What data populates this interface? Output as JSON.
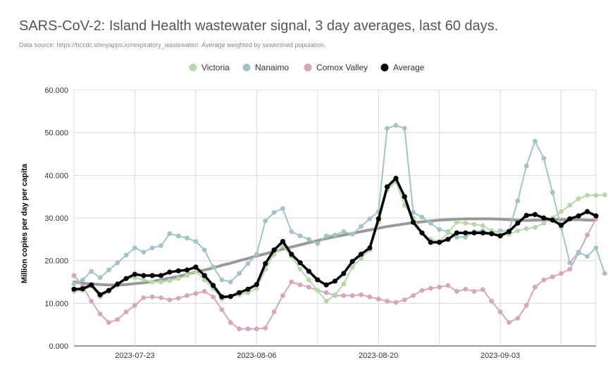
{
  "chart_data": {
    "type": "line",
    "title": "SARS-CoV-2: Island Health wastewater signal, 3 day averages, last 60 days.",
    "subtitle": "Data source: https://bccdc.shinyapps.io/respiratory_wastewater/. Average weighted by sewershed population.",
    "ylabel": "Million copies per day per capita",
    "xlabel": "",
    "ylim": [
      0,
      60
    ],
    "yticks": [
      "0.000",
      "10.000",
      "20.000",
      "30.000",
      "40.000",
      "50.000",
      "60.000"
    ],
    "x_start": "2023-07-16",
    "xticks": [
      {
        "day": 7,
        "label": "2023-07-23"
      },
      {
        "day": 21,
        "label": "2023-08-06"
      },
      {
        "day": 35,
        "label": "2023-08-20"
      },
      {
        "day": 49,
        "label": "2023-09-03"
      }
    ],
    "x_vgrid_days": [
      0,
      7,
      14,
      21,
      28,
      35,
      42,
      49,
      56
    ],
    "grid": true,
    "legend_position": "top",
    "series": [
      {
        "name": "Victoria",
        "color": "#b6d7a8",
        "marker": true,
        "values": [
          12.8,
          13.0,
          14.0,
          11.5,
          12.8,
          14.2,
          15.8,
          16.0,
          15.5,
          15.0,
          15.0,
          15.3,
          15.8,
          16.5,
          17.5,
          15.5,
          13.5,
          11.0,
          11.5,
          12.0,
          12.5,
          13.5,
          18.0,
          21.5,
          23.5,
          21.0,
          18.0,
          15.5,
          13.0,
          10.5,
          12.0,
          14.5,
          18.5,
          20.5,
          22.5,
          29.0,
          36.5,
          38.5,
          33.0,
          30.0,
          26.5,
          25.0,
          24.5,
          26.5,
          29.0,
          28.8,
          28.5,
          28.2,
          27.0,
          26.5,
          26.2,
          27.0,
          27.5,
          27.8,
          28.8,
          30.0,
          31.5,
          33.0,
          34.5,
          35.3,
          35.3,
          35.4
        ]
      },
      {
        "name": "Nanaimo",
        "color": "#a2c4c9",
        "marker": true,
        "values": [
          14.5,
          15.5,
          17.5,
          16.0,
          17.8,
          19.5,
          21.3,
          23.0,
          22.0,
          23.0,
          23.5,
          26.3,
          25.8,
          25.3,
          24.5,
          22.5,
          18.5,
          15.5,
          15.0,
          17.0,
          19.3,
          21.5,
          29.3,
          31.3,
          32.2,
          26.8,
          25.8,
          25.0,
          24.0,
          25.8,
          26.0,
          26.8,
          26.2,
          28.0,
          29.8,
          31.5,
          51.0,
          51.7,
          51.0,
          31.3,
          30.2,
          28.8,
          27.3,
          26.8,
          25.5,
          25.5,
          26.8,
          27.0,
          26.5,
          27.0,
          27.0,
          34.0,
          42.2,
          48.0,
          44.0,
          36.0,
          27.8,
          19.5,
          22.0,
          21.0,
          23.0,
          17.0
        ]
      },
      {
        "name": "Comox Valley",
        "color": "#d5a6bd",
        "marker": true,
        "values": [
          16.5,
          14.0,
          10.5,
          7.5,
          5.5,
          6.2,
          8.0,
          9.5,
          11.3,
          11.5,
          11.3,
          10.8,
          11.2,
          11.8,
          12.3,
          12.8,
          11.5,
          8.5,
          5.5,
          4.0,
          4.0,
          4.0,
          4.2,
          8.0,
          11.8,
          15.0,
          14.3,
          13.8,
          13.0,
          12.5,
          11.8,
          11.8,
          11.8,
          12.0,
          11.5,
          11.0,
          10.5,
          10.2,
          10.8,
          11.8,
          13.0,
          13.5,
          13.8,
          14.2,
          12.8,
          13.3,
          12.8,
          13.2,
          10.5,
          8.0,
          5.5,
          6.5,
          9.5,
          13.8,
          15.5,
          16.2,
          17.0,
          18.0,
          21.8,
          26.0,
          29.8
        ]
      },
      {
        "name": "Average",
        "color": "#000000",
        "marker": true,
        "values": [
          13.3,
          13.4,
          14.3,
          12.0,
          13.0,
          14.5,
          15.8,
          16.8,
          16.5,
          16.5,
          16.5,
          17.3,
          17.6,
          17.8,
          18.5,
          16.5,
          14.2,
          11.5,
          11.6,
          12.5,
          13.3,
          14.4,
          19.3,
          22.5,
          24.5,
          21.5,
          19.5,
          17.5,
          15.5,
          14.3,
          15.2,
          17.0,
          19.8,
          21.5,
          23.0,
          29.8,
          37.3,
          39.3,
          35.0,
          29.0,
          26.5,
          24.3,
          24.3,
          25.0,
          26.5,
          26.5,
          26.5,
          26.5,
          26.3,
          25.8,
          26.8,
          28.8,
          30.6,
          30.8,
          30.0,
          29.5,
          28.3,
          29.8,
          30.5,
          31.5,
          30.5
        ]
      },
      {
        "name": "Trend",
        "color": "#999999",
        "marker": false,
        "values": [
          15.0,
          14.7,
          14.5,
          14.4,
          14.3,
          14.3,
          14.4,
          14.6,
          14.8,
          15.1,
          15.5,
          15.9,
          16.3,
          16.8,
          17.3,
          17.8,
          18.3,
          18.9,
          19.4,
          20.0,
          20.5,
          21.1,
          21.6,
          22.2,
          22.7,
          23.2,
          23.7,
          24.2,
          24.7,
          25.2,
          25.6,
          26.0,
          26.4,
          26.8,
          27.2,
          27.6,
          28.0,
          28.3,
          28.6,
          28.9,
          29.1,
          29.3,
          29.5,
          29.6,
          29.7,
          29.8,
          29.8,
          29.8,
          29.8,
          29.7,
          29.6,
          29.5,
          29.4,
          29.5,
          29.5,
          29.6,
          29.6,
          29.6,
          29.6,
          29.5,
          29.5
        ]
      }
    ],
    "legend": [
      "Victoria",
      "Nanaimo",
      "Comox Valley",
      "Average"
    ]
  }
}
